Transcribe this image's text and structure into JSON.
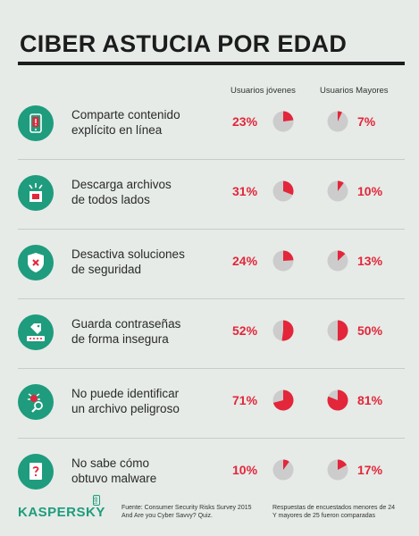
{
  "title": "CIBER ASTUCIA POR EDAD",
  "columns": {
    "young": "Usuarios jóvenes",
    "old": "Usuarios Mayores"
  },
  "colors": {
    "accent": "#e3263a",
    "icon_bg": "#1e9c7d",
    "pie_bg": "#cccccc",
    "background": "#e6ebe7"
  },
  "rows": [
    {
      "line1": "Comparte contenido",
      "line2": "explícito en línea",
      "young": "23%",
      "old": "7%",
      "young_value": 23,
      "old_value": 7,
      "icon": "phone-alert-icon"
    },
    {
      "line1": "Descarga archivos",
      "line2": "de todos lados",
      "young": "31%",
      "old": "10%",
      "young_value": 31,
      "old_value": 10,
      "icon": "download-file-icon"
    },
    {
      "line1": "Desactiva soluciones",
      "line2": "de seguridad",
      "young": "24%",
      "old": "13%",
      "young_value": 24,
      "old_value": 13,
      "icon": "shield-x-icon"
    },
    {
      "line1": "Guarda contraseñas",
      "line2": "de forma insegura",
      "young": "52%",
      "old": "50%",
      "young_value": 52,
      "old_value": 50,
      "icon": "password-tag-icon"
    },
    {
      "line1": "No puede identificar",
      "line2": "un archivo peligroso",
      "young": "71%",
      "old": "81%",
      "young_value": 71,
      "old_value": 81,
      "icon": "bug-search-icon"
    },
    {
      "line1": "No sabe cómo",
      "line2": "obtuvo malware",
      "young": "10%",
      "old": "17%",
      "young_value": 10,
      "old_value": 17,
      "icon": "question-file-icon"
    }
  ],
  "footer": {
    "logo": "KASPERSKY",
    "logo_badge": "lab",
    "source_line1": "Fuente: Consumer Security Risks Survey 2015",
    "source_line2": "And Are you Cyber Savvy? Quiz.",
    "note_line1": "Respuestas de encuestados menores de 24",
    "note_line2": "Y mayores de 25 fueron comparadas"
  }
}
